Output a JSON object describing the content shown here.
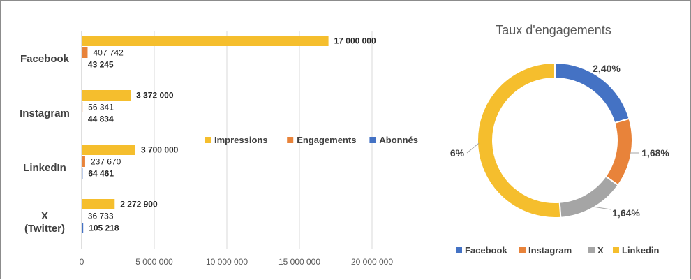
{
  "chart_data": [
    {
      "type": "bar",
      "orientation": "horizontal",
      "categories": [
        "Facebook",
        "Instagram",
        "LinkedIn",
        "X\n(Twitter)"
      ],
      "series": [
        {
          "name": "Impressions",
          "color": "#F5BE2D",
          "values": [
            17000000,
            3372000,
            3700000,
            2272900
          ],
          "labels": [
            "17 000 000",
            "3 372 000",
            "3 700 000",
            "2 272 900"
          ],
          "label_bold": true
        },
        {
          "name": "Engagements",
          "color": "#E8833A",
          "values": [
            407742,
            56341,
            237670,
            36733
          ],
          "labels": [
            "407 742",
            "56 341",
            "237 670",
            "36 733"
          ],
          "label_bold": false
        },
        {
          "name": "Abonnés",
          "color": "#4472C4",
          "values": [
            43245,
            44834,
            64461,
            105218
          ],
          "labels": [
            "43 245",
            "44 834",
            "64 461",
            "105 218"
          ],
          "label_bold": true
        }
      ],
      "xlim": [
        0,
        20000000
      ],
      "xticks": [
        0,
        5000000,
        10000000,
        15000000,
        20000000
      ],
      "xtick_labels": [
        "0",
        "5 000 000",
        "10 000 000",
        "15 000 000",
        "20 000 000"
      ],
      "grid": true,
      "legend_placement": "center-right"
    },
    {
      "type": "pie",
      "variant": "donut",
      "title": "Taux d'engagements",
      "categories": [
        "Facebook",
        "Instagram",
        "X",
        "Linkedin"
      ],
      "values": [
        2.4,
        1.68,
        1.64,
        6
      ],
      "labels": [
        "2,40%",
        "1,68%",
        "1,64%",
        "6%"
      ],
      "colors": [
        "#4472C4",
        "#E8833A",
        "#A5A5A5",
        "#F5BE2D"
      ],
      "legend_placement": "bottom"
    }
  ]
}
